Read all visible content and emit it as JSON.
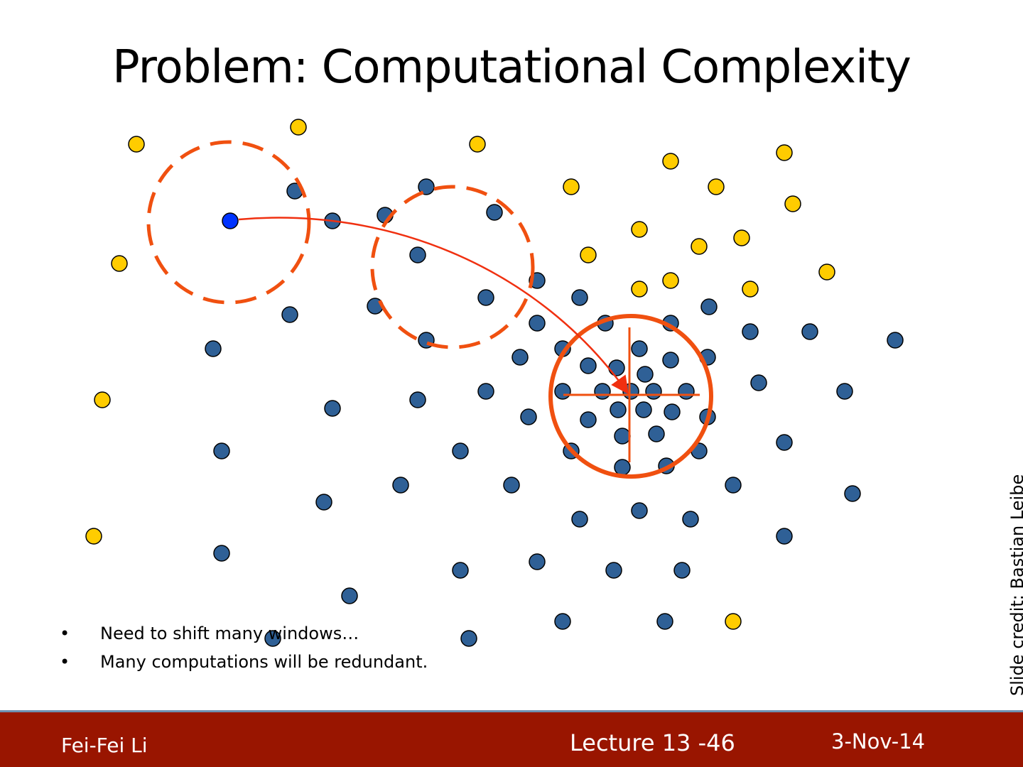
{
  "slide": {
    "title": "Problem: Computational Complexity",
    "bullets": [
      "Need to shift many windows…",
      "Many computations will be redundant."
    ],
    "bullet_symbol": "•",
    "credit": "Slide credit: Bastian Leibe"
  },
  "footer": {
    "author": "Fei-Fei Li",
    "lecture": "Lecture 13 -46",
    "date": "3-Nov-14"
  },
  "colors": {
    "footer_bg": "#991500",
    "window": "#F05010",
    "blue_point": "#2F6096",
    "yellow_point": "#FFCC00",
    "start_point": "#0033FF"
  }
}
